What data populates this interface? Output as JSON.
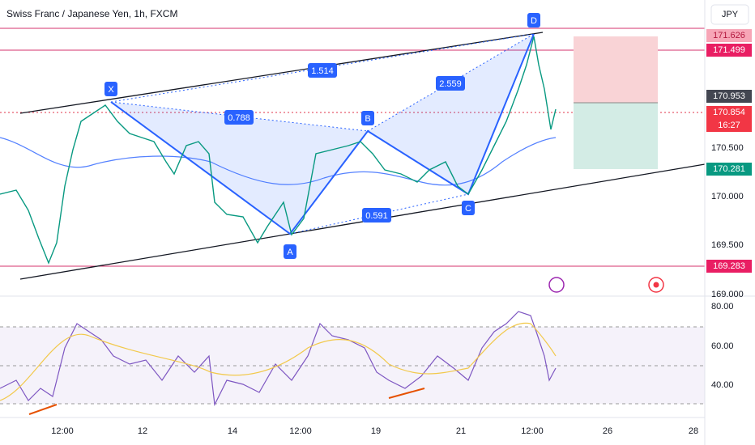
{
  "header": {
    "title": "Swiss Franc / Japanese Yen, 1h, FXCM",
    "currency": "JPY"
  },
  "price_labels": [
    "171.626",
    "171.499",
    "170.953",
    "170.854",
    "16:27",
    "170.281",
    "169.283"
  ],
  "price_axis": [
    "170.500",
    "170.000",
    "169.500",
    "169.000"
  ],
  "rsi_axis": [
    "80.00",
    "60.00",
    "40.00"
  ],
  "time_axis": [
    "12:00",
    "12",
    "14",
    "12:00",
    "19",
    "21",
    "12:00",
    "26",
    "28"
  ],
  "pattern_points": [
    "X",
    "A",
    "B",
    "C",
    "D"
  ],
  "pattern_ratios": [
    "1.514",
    "0.788",
    "2.559",
    "0.591"
  ]
}
